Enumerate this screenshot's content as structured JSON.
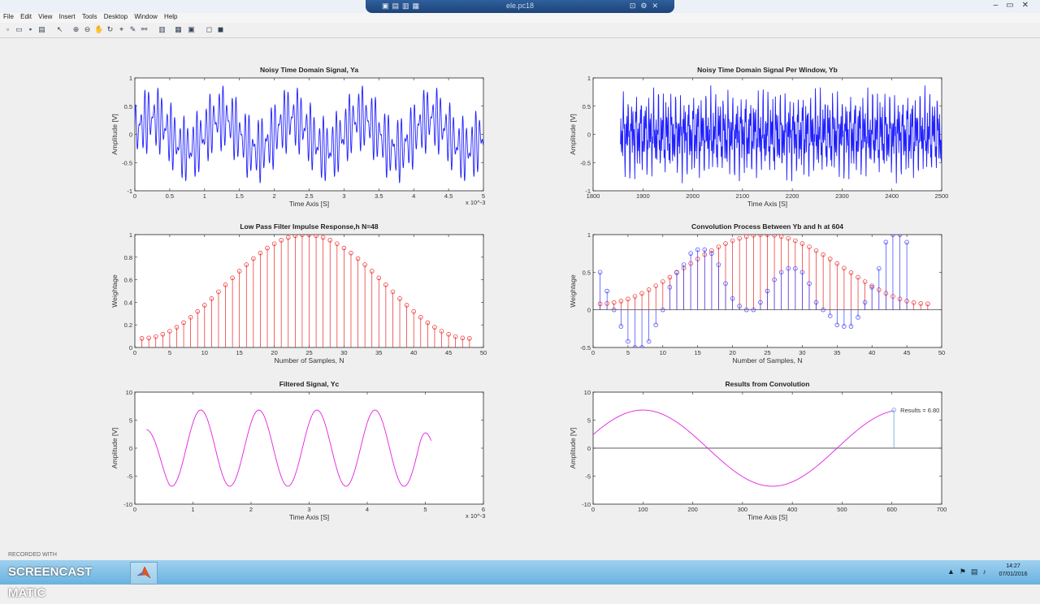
{
  "window": {
    "title": "ele.pc18",
    "menu": [
      "File",
      "Edit",
      "View",
      "Insert",
      "Tools",
      "Desktop",
      "Window",
      "Help"
    ]
  },
  "toolbar_icons": [
    "new-file-icon",
    "open-folder-icon",
    "save-icon",
    "print-icon",
    "pointer-icon",
    "zoom-in-icon",
    "zoom-out-icon",
    "pan-icon",
    "rotate-icon",
    "data-cursor-icon",
    "brush-icon",
    "link-icon",
    "colorbar-icon",
    "legend-icon",
    "hide-plot-tools-icon",
    "show-plot-tools-icon"
  ],
  "taskbar": {
    "watermark": "RECORDED WITH",
    "logo": "SCREENCAST MATIC",
    "clock_time": "14:27",
    "clock_date": "07/01/2016"
  },
  "colors": {
    "blue": "#1f1fff",
    "red": "#ee2222",
    "magenta": "#e020e0",
    "axis_bg": "#ffffff",
    "fig_bg": "#efefef"
  },
  "chart_data": [
    {
      "id": "p1",
      "type": "line",
      "title": "Noisy Time Domain Signal, Ya",
      "xlabel": "Time Axis [S]",
      "ylabel": "Amplitude [V]",
      "xlim": [
        0,
        5
      ],
      "ylim": [
        -1,
        1
      ],
      "xexp": "x 10^-3",
      "xticks": [
        "0",
        "0.5",
        "1",
        "1.5",
        "2",
        "2.5",
        "3",
        "3.5",
        "4",
        "4.5",
        "5"
      ],
      "yticks": [
        "-1",
        "-0.5",
        "0",
        "0.5",
        "1"
      ],
      "series": [
        {
          "color": "#1f1fff",
          "components": [
            {
              "amp": 0.28,
              "freq": 1000,
              "phase": 0
            },
            {
              "amp": 0.33,
              "freq": 16000,
              "phase": 0
            },
            {
              "amp": 0.27,
              "freq": 21500,
              "phase": 0.7
            }
          ],
          "samples": 1200,
          "x0": 0,
          "x1": 0.005,
          "xscale": 1000
        }
      ]
    },
    {
      "id": "p2",
      "type": "line",
      "title": "Noisy Time Domain Signal Per Window, Yb",
      "xlabel": "Time Axis [S]",
      "ylabel": "Amplitude [V]",
      "xlim": [
        1800,
        2500
      ],
      "ylim": [
        -1,
        1
      ],
      "xticks": [
        "1800",
        "1900",
        "2000",
        "2100",
        "2200",
        "2300",
        "2400",
        "2500"
      ],
      "yticks": [
        "-1",
        "-0.5",
        "0",
        "0.5",
        "1"
      ],
      "series": [
        {
          "color": "#1f1fff",
          "components": [
            {
              "amp": 0.28,
              "freq": 0.2,
              "phase": 0
            },
            {
              "amp": 0.33,
              "freq": 3.2,
              "phase": 0
            },
            {
              "amp": 0.27,
              "freq": 4.3,
              "phase": 0.7
            }
          ],
          "samples": 900,
          "x0": 1855,
          "x1": 2500,
          "xscale": 1,
          "tscale": 0.005
        }
      ]
    },
    {
      "id": "p3",
      "type": "stem",
      "title": "Low Pass Filter Impulse Response,h N=48",
      "xlabel": "Number of Samples, N",
      "ylabel": "Weightage",
      "xlim": [
        0,
        50
      ],
      "ylim": [
        0,
        1
      ],
      "xticks": [
        "0",
        "5",
        "10",
        "15",
        "20",
        "25",
        "30",
        "35",
        "40",
        "45",
        "50"
      ],
      "yticks": [
        "0",
        "0.2",
        "0.4",
        "0.6",
        "0.8",
        "1"
      ],
      "window": {
        "n": 48,
        "a0": 0.54,
        "a1": 0.46,
        "start": 1
      },
      "color": "#ee2222"
    },
    {
      "id": "p4",
      "type": "stem",
      "title": "Convolution Process Between Yb and h at 604",
      "xlabel": "Number of Samples, N",
      "ylabel": "Weightage",
      "xlim": [
        0,
        50
      ],
      "ylim": [
        -0.5,
        1
      ],
      "xticks": [
        "0",
        "5",
        "10",
        "15",
        "20",
        "25",
        "30",
        "35",
        "40",
        "45",
        "50"
      ],
      "yticks": [
        "-0.5",
        "0",
        "0.5",
        "1"
      ],
      "window": {
        "n": 48,
        "a0": 0.54,
        "a1": 0.46,
        "start": 1
      },
      "color": "#ee2222",
      "blue_series": {
        "color": "#3a3aff",
        "values": [
          0.5,
          0.25,
          0.0,
          -0.22,
          -0.42,
          -0.5,
          -0.5,
          -0.42,
          -0.2,
          0.0,
          0.3,
          0.5,
          0.6,
          0.75,
          0.8,
          0.8,
          0.75,
          0.6,
          0.35,
          0.15,
          0.05,
          0.0,
          0.0,
          0.1,
          0.25,
          0.4,
          0.5,
          0.55,
          0.55,
          0.5,
          0.35,
          0.1,
          0.0,
          -0.08,
          -0.2,
          -0.22,
          -0.22,
          -0.1,
          0.1,
          0.3,
          0.55,
          0.9,
          1.0,
          1.0,
          0.9
        ]
      }
    },
    {
      "id": "p5",
      "type": "line",
      "title": "Filtered Signal, Yc",
      "xlabel": "Time Axis [S]",
      "ylabel": "Amplitude [V]",
      "xlim": [
        0,
        6
      ],
      "ylim": [
        -10,
        10
      ],
      "xexp": "x 10^-3",
      "xticks": [
        "0",
        "1",
        "2",
        "3",
        "4",
        "5",
        "6"
      ],
      "yticks": [
        "-10",
        "-5",
        "0",
        "5",
        "10"
      ],
      "series": [
        {
          "color": "#e020e0",
          "amp": 6.8,
          "freq": 1000,
          "phase": 0.1,
          "x0": 0.0002,
          "x1": 0.0051
        }
      ]
    },
    {
      "id": "p6",
      "type": "line",
      "title": "Results from Convolution",
      "xlabel": "Time Axis [S]",
      "ylabel": "Amplitude [V]",
      "xlim": [
        0,
        700
      ],
      "ylim": [
        -10,
        10
      ],
      "xticks": [
        "0",
        "100",
        "200",
        "300",
        "400",
        "500",
        "600",
        "700"
      ],
      "yticks": [
        "-10",
        "-5",
        "0",
        "5",
        "10"
      ],
      "series": [
        {
          "color": "#e020e0",
          "amp": 6.8,
          "period": 520,
          "peak_x": 100,
          "x0": 0,
          "x1": 604
        }
      ],
      "marker": {
        "x": 604,
        "y": 6.8
      },
      "annotation": "Results = 6.80"
    }
  ]
}
